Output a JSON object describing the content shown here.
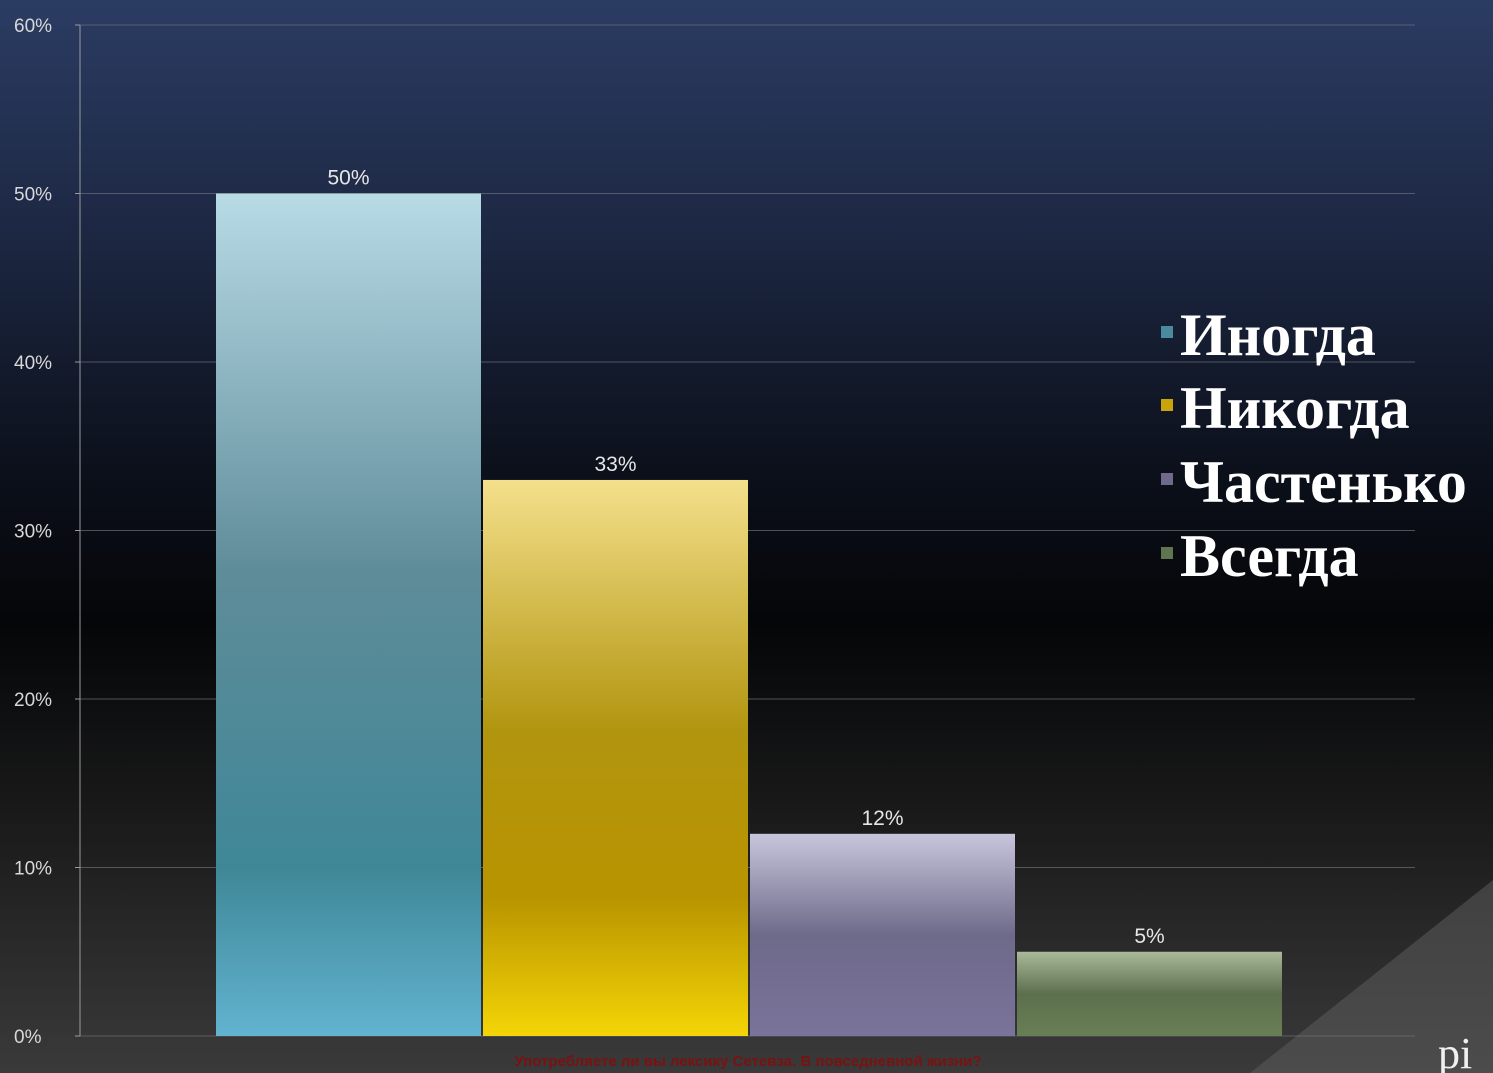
{
  "chart_data": {
    "type": "bar",
    "title": "",
    "xlabel": "Употребляете ли вы лексику Сетевза. В повседневной жизни?",
    "ylabel": "",
    "ylim": [
      0,
      60
    ],
    "yticks": [
      "0%",
      "10%",
      "20%",
      "30%",
      "40%",
      "50%",
      "60%"
    ],
    "ytick_values": [
      0,
      10,
      20,
      30,
      40,
      50,
      60
    ],
    "grid": true,
    "legend_position": "right",
    "categories": [
      "Иногда",
      "Никогда",
      "Частенько",
      "Всегда"
    ],
    "values": [
      50,
      33,
      12,
      5
    ],
    "data_labels": [
      "50%",
      "33%",
      "12%",
      "5%"
    ],
    "colors": [
      "#4a8a9e",
      "#c9a40a",
      "#6f6a8c",
      "#5f7550"
    ],
    "legend": [
      "Иногда",
      "Никогда",
      "Частенько",
      "Всегда"
    ]
  },
  "corner_text": "рі"
}
